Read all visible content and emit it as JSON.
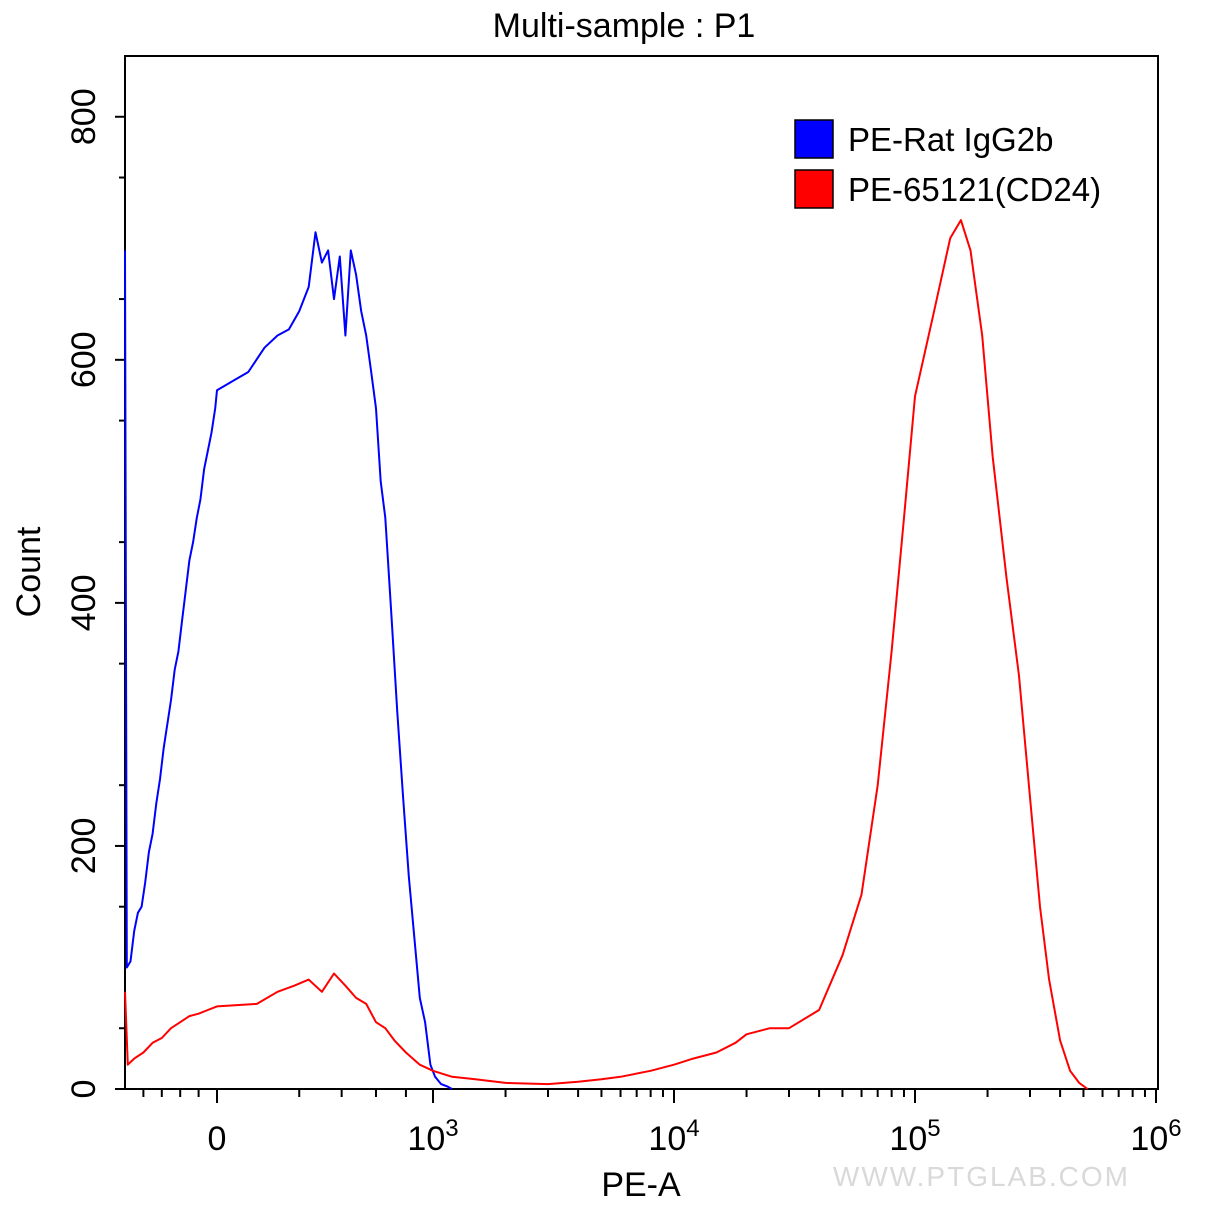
{
  "chart_data": {
    "type": "line",
    "title": "Multi-sample : P1",
    "xlabel": "PE-A",
    "ylabel": "Count",
    "x_scale": "biexponential",
    "xlim": [
      -1000,
      1000000
    ],
    "ylim": [
      0,
      850
    ],
    "x_ticks": [
      {
        "value": 0,
        "base": "0",
        "exp": ""
      },
      {
        "value": 1000,
        "base": "10",
        "exp": "3"
      },
      {
        "value": 10000,
        "base": "10",
        "exp": "4"
      },
      {
        "value": 100000,
        "base": "10",
        "exp": "5"
      },
      {
        "value": 1000000,
        "base": "10",
        "exp": "6"
      }
    ],
    "y_ticks": [
      0,
      200,
      400,
      600,
      800
    ],
    "legend_position": "top-right",
    "series": [
      {
        "name": "PE-Rat IgG2b",
        "color": "#0000ff",
        "points": [
          [
            -1000,
            690
          ],
          [
            -980,
            100
          ],
          [
            -940,
            105
          ],
          [
            -900,
            130
          ],
          [
            -860,
            145
          ],
          [
            -820,
            150
          ],
          [
            -780,
            170
          ],
          [
            -740,
            195
          ],
          [
            -700,
            210
          ],
          [
            -660,
            235
          ],
          [
            -620,
            255
          ],
          [
            -580,
            280
          ],
          [
            -540,
            300
          ],
          [
            -500,
            320
          ],
          [
            -460,
            345
          ],
          [
            -420,
            360
          ],
          [
            -380,
            385
          ],
          [
            -340,
            410
          ],
          [
            -300,
            435
          ],
          [
            -260,
            450
          ],
          [
            -220,
            470
          ],
          [
            -180,
            485
          ],
          [
            -140,
            510
          ],
          [
            -100,
            525
          ],
          [
            -60,
            540
          ],
          [
            -20,
            560
          ],
          [
            0,
            575
          ],
          [
            40,
            590
          ],
          [
            80,
            610
          ],
          [
            120,
            620
          ],
          [
            160,
            625
          ],
          [
            200,
            640
          ],
          [
            240,
            660
          ],
          [
            270,
            705
          ],
          [
            300,
            680
          ],
          [
            330,
            690
          ],
          [
            360,
            650
          ],
          [
            390,
            685
          ],
          [
            420,
            620
          ],
          [
            450,
            690
          ],
          [
            480,
            670
          ],
          [
            510,
            640
          ],
          [
            540,
            620
          ],
          [
            570,
            590
          ],
          [
            600,
            560
          ],
          [
            630,
            500
          ],
          [
            660,
            470
          ],
          [
            700,
            390
          ],
          [
            740,
            310
          ],
          [
            780,
            240
          ],
          [
            820,
            175
          ],
          [
            860,
            125
          ],
          [
            900,
            75
          ],
          [
            940,
            55
          ],
          [
            980,
            20
          ],
          [
            1020,
            10
          ],
          [
            1080,
            4
          ],
          [
            1150,
            2
          ],
          [
            1200,
            0
          ]
        ]
      },
      {
        "name": "PE-65121(CD24)",
        "color": "#ff0000",
        "points": [
          [
            -1000,
            80
          ],
          [
            -970,
            20
          ],
          [
            -900,
            25
          ],
          [
            -800,
            30
          ],
          [
            -700,
            38
          ],
          [
            -600,
            42
          ],
          [
            -500,
            50
          ],
          [
            -400,
            55
          ],
          [
            -300,
            60
          ],
          [
            -200,
            62
          ],
          [
            -100,
            65
          ],
          [
            0,
            68
          ],
          [
            60,
            70
          ],
          [
            120,
            80
          ],
          [
            180,
            85
          ],
          [
            240,
            90
          ],
          [
            300,
            80
          ],
          [
            360,
            95
          ],
          [
            420,
            85
          ],
          [
            480,
            75
          ],
          [
            540,
            70
          ],
          [
            600,
            55
          ],
          [
            660,
            50
          ],
          [
            720,
            40
          ],
          [
            800,
            30
          ],
          [
            900,
            20
          ],
          [
            1000,
            15
          ],
          [
            1200,
            10
          ],
          [
            1500,
            8
          ],
          [
            2000,
            5
          ],
          [
            3000,
            4
          ],
          [
            4000,
            6
          ],
          [
            5000,
            8
          ],
          [
            6000,
            10
          ],
          [
            8000,
            15
          ],
          [
            10000,
            20
          ],
          [
            12000,
            25
          ],
          [
            15000,
            30
          ],
          [
            18000,
            38
          ],
          [
            20000,
            45
          ],
          [
            25000,
            50
          ],
          [
            30000,
            50
          ],
          [
            40000,
            65
          ],
          [
            50000,
            110
          ],
          [
            60000,
            160
          ],
          [
            70000,
            250
          ],
          [
            80000,
            360
          ],
          [
            90000,
            470
          ],
          [
            100000,
            570
          ],
          [
            120000,
            640
          ],
          [
            140000,
            700
          ],
          [
            155000,
            715
          ],
          [
            170000,
            690
          ],
          [
            190000,
            620
          ],
          [
            210000,
            520
          ],
          [
            240000,
            420
          ],
          [
            270000,
            340
          ],
          [
            300000,
            240
          ],
          [
            330000,
            150
          ],
          [
            360000,
            90
          ],
          [
            400000,
            40
          ],
          [
            440000,
            15
          ],
          [
            480000,
            5
          ],
          [
            520000,
            0
          ]
        ]
      }
    ]
  },
  "watermark": "WWW.PTGLAB.COM"
}
